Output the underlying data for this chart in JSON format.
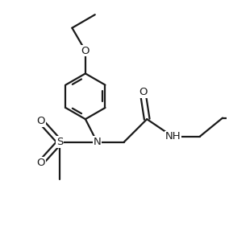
{
  "bg_color": "#ffffff",
  "line_color": "#1a1a1a",
  "line_width": 1.6,
  "font_size": 9.5,
  "figsize": [
    2.84,
    2.86
  ],
  "dpi": 100,
  "xlim": [
    -2.8,
    2.6
  ],
  "ylim": [
    -2.5,
    2.8
  ]
}
